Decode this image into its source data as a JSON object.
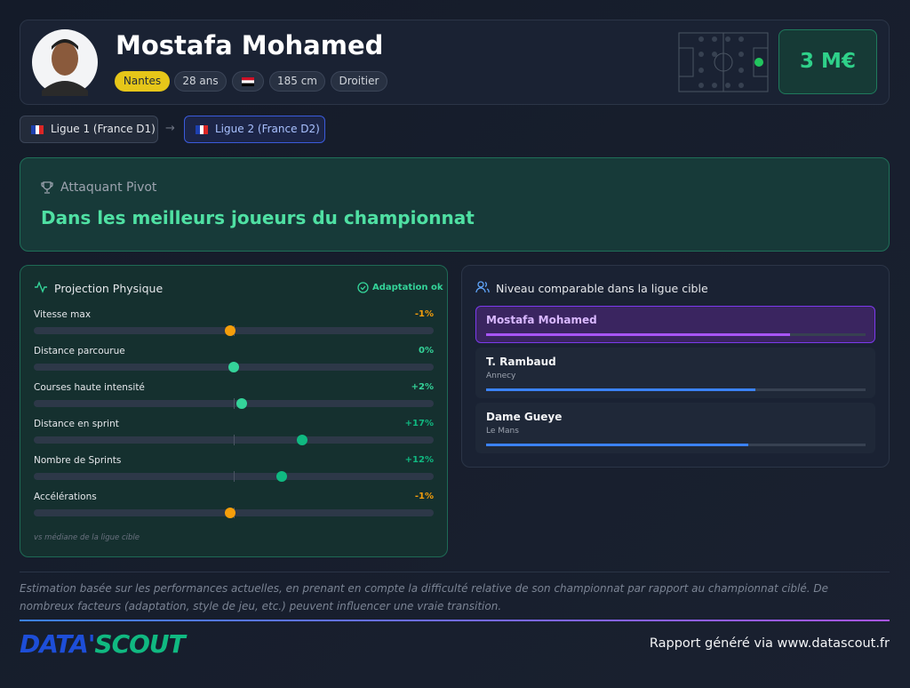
{
  "header": {
    "name": "Mostafa Mohamed",
    "tags": [
      "Nantes",
      "28 ans",
      "185 cm",
      "Droitier"
    ],
    "market_value": "3 M€"
  },
  "transfer": {
    "from": "Ligue 1 (France D1)",
    "arrow": "→",
    "to": "Ligue 2 (France D2)"
  },
  "role": {
    "label": "Attaquant Pivot",
    "headline": "Dans les meilleurs joueurs du championnat"
  },
  "physical": {
    "title": "Projection Physique",
    "status": "Adaptation ok",
    "xlim": [
      -50,
      50
    ],
    "items": [
      {
        "label": "Vitesse max",
        "value": -1,
        "value_label": "-1%",
        "color": "#f59e0b"
      },
      {
        "label": "Distance parcourue",
        "value": 0,
        "value_label": "0%",
        "color": "#34d399"
      },
      {
        "label": "Courses haute intensité",
        "value": 2,
        "value_label": "+2%",
        "color": "#34d399"
      },
      {
        "label": "Distance en sprint",
        "value": 17,
        "value_label": "+17%",
        "color": "#10b981"
      },
      {
        "label": "Nombre de Sprints",
        "value": 12,
        "value_label": "+12%",
        "color": "#10b981"
      },
      {
        "label": "Accélérations",
        "value": -1,
        "value_label": "-1%",
        "color": "#f59e0b"
      }
    ],
    "note": "vs médiane de la ligue cible"
  },
  "comparable": {
    "title": "Niveau comparable dans la ligue cible",
    "level_max": 100,
    "players": [
      {
        "name": "Mostafa Mohamed",
        "level": 80,
        "color": "#a855f7"
      },
      {
        "name": "T. Rambaud",
        "club": "Annecy",
        "level": 71,
        "color": "#3b82f6"
      },
      {
        "name": "Dame Gueye",
        "club": "Le Mans",
        "level": 69,
        "color": "#3b82f6"
      }
    ]
  },
  "footer": {
    "disclaimer": "Estimation basée sur les performances actuelles, en prenant en compte la difficulté relative de son championnat par rapport au championnat ciblé. De nombreux facteurs (adaptation, style de jeu, etc.) peuvent influencer une vraie transition.",
    "logo": [
      "DATA'",
      "SCOUT"
    ],
    "credit": "Rapport généré via www.datascout.fr"
  }
}
